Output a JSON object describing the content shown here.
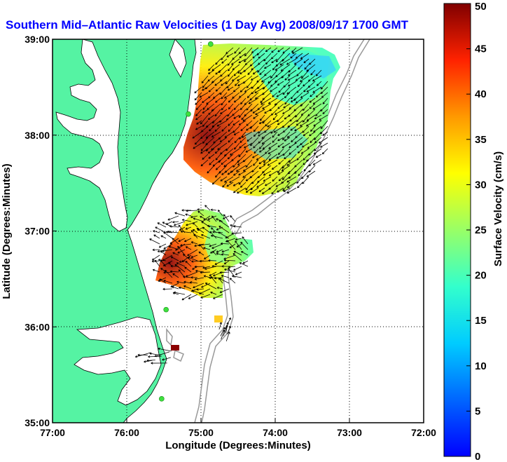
{
  "title": "Southern Mid–Atlantic Raw Velocities (1 Day Avg) 2008/09/17 1700 GMT",
  "x_axis": {
    "label": "Longitude (Degrees:Minutes)",
    "ticks": [
      "77:00",
      "76:00",
      "75:00",
      "74:00",
      "73:00",
      "72:00"
    ],
    "values": [
      -77,
      -76,
      -75,
      -74,
      -73,
      -72
    ]
  },
  "y_axis": {
    "label": "Latitude (Degrees:Minutes)",
    "ticks": [
      "39:00",
      "38:00",
      "37:00",
      "36:00",
      "35:00"
    ],
    "values": [
      39,
      38,
      37,
      36,
      35
    ]
  },
  "colorbar": {
    "label": "Surface Velocity (cm/s)",
    "min": 0,
    "max": 50,
    "ticks": [
      "50",
      "45",
      "40",
      "35",
      "30",
      "25",
      "20",
      "15",
      "10",
      "5",
      "0"
    ],
    "colormap": "jet"
  },
  "colors": {
    "land": "#55f3a3",
    "title": "#0000ff",
    "station": "#3ee03e",
    "bathymetry": "#999999"
  },
  "map_extent": {
    "lon": [
      -77,
      -72
    ],
    "lat": [
      35,
      39
    ]
  },
  "grid": "dotted",
  "stations": [
    {
      "lon": -74.87,
      "lat": 38.95
    },
    {
      "lon": -75.17,
      "lat": 38.22
    },
    {
      "lon": -75.47,
      "lat": 36.18
    },
    {
      "lon": -75.53,
      "lat": 35.25
    }
  ]
}
